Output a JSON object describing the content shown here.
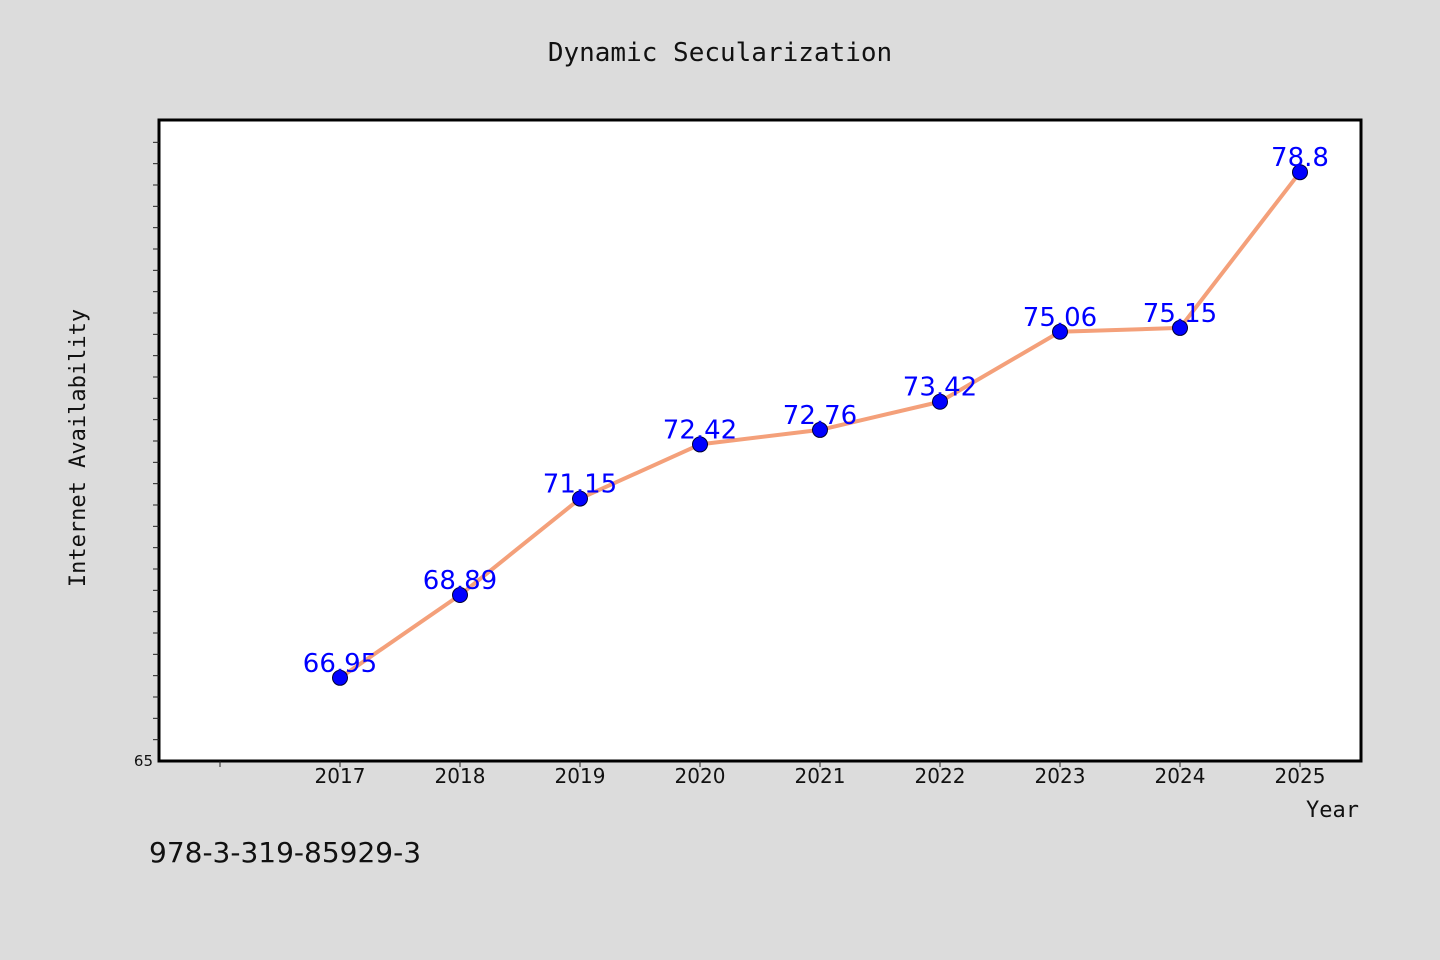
{
  "chart_data": {
    "type": "line",
    "title": "Dynamic Secularization",
    "xlabel": "Year",
    "ylabel": "Internet Availability",
    "categories": [
      "2017",
      "2018",
      "2019",
      "2020",
      "2021",
      "2022",
      "2023",
      "2024",
      "2025"
    ],
    "series": [
      {
        "values": [
          66.95,
          68.89,
          71.15,
          72.42,
          72.76,
          73.42,
          75.06,
          75.15,
          78.8
        ],
        "labels": [
          "66.95",
          "68.89",
          "71.15",
          "72.42",
          "72.76",
          "73.42",
          "75.06",
          "75.15",
          "78.8"
        ],
        "color": "#f4a07a",
        "marker_color": "#0000ff"
      }
    ],
    "ylim": [
      65,
      80
    ],
    "y_min_label": "65",
    "grid": false,
    "legend": "none"
  },
  "footer": {
    "isbn": "978-3-319-85929-3"
  },
  "colors": {
    "background": "#dcdcdc",
    "plot_area": "#ffffff",
    "line": "#f4a07a",
    "marker": "#0000ff",
    "data_label": "#0000ff"
  }
}
